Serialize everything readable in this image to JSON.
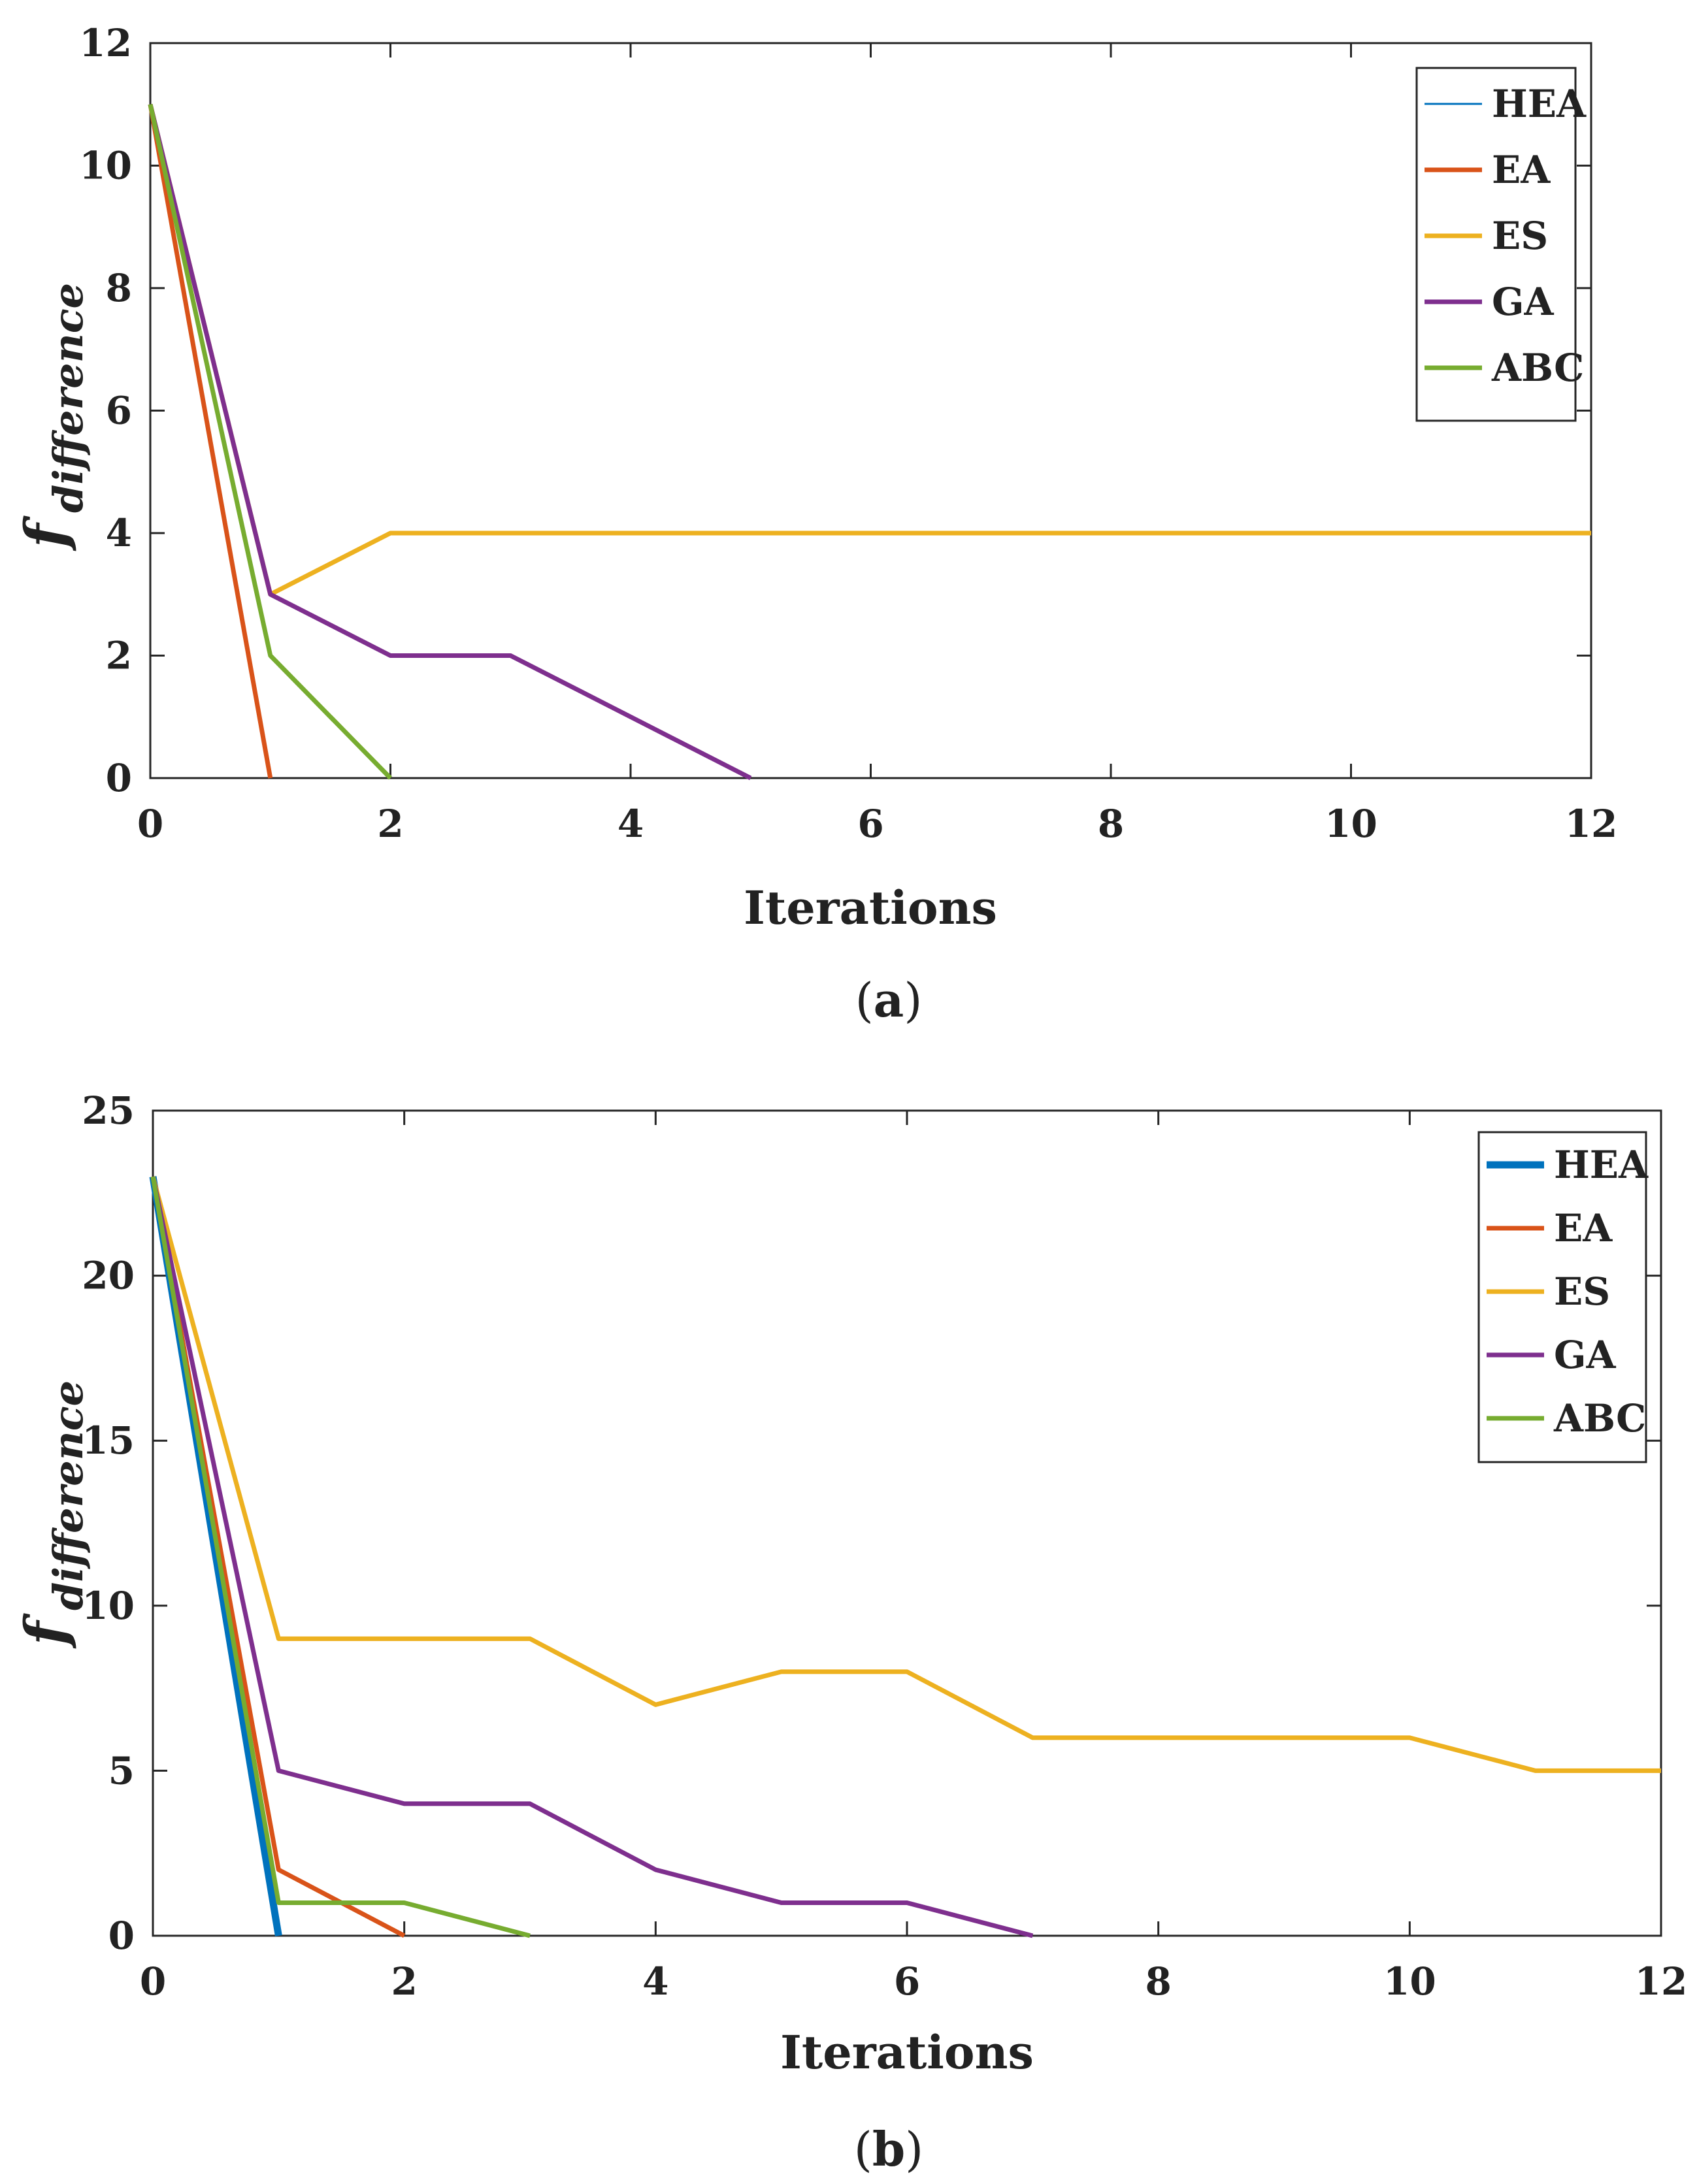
{
  "chart_data": [
    {
      "type": "line",
      "panel_label": "a",
      "xlabel": "Iterations",
      "ylabel_main": "f",
      "ylabel_sub": "difference",
      "xlim": [
        0,
        12
      ],
      "ylim": [
        0,
        12
      ],
      "xticks": [
        0,
        2,
        4,
        6,
        8,
        10,
        12
      ],
      "yticks": [
        0,
        2,
        4,
        6,
        8,
        10,
        12
      ],
      "grid": false,
      "legend_position": "top-right",
      "series": [
        {
          "name": "HEA",
          "color": "#0072BD",
          "thin": true,
          "x": [
            0,
            1
          ],
          "y": [
            11,
            0
          ]
        },
        {
          "name": "EA",
          "color": "#D95319",
          "x": [
            0,
            1
          ],
          "y": [
            11,
            0
          ]
        },
        {
          "name": "ES",
          "color": "#EDB120",
          "x": [
            0,
            1,
            2,
            3,
            4,
            5,
            6,
            7,
            8,
            9,
            10,
            11,
            12
          ],
          "y": [
            11,
            3,
            4,
            4,
            4,
            4,
            4,
            4,
            4,
            4,
            4,
            4,
            4
          ]
        },
        {
          "name": "GA",
          "color": "#7E2F8E",
          "x": [
            0,
            1,
            2,
            3,
            4,
            5
          ],
          "y": [
            11,
            3,
            2,
            2,
            1,
            0
          ]
        },
        {
          "name": "ABC",
          "color": "#77AC30",
          "x": [
            0,
            1,
            2
          ],
          "y": [
            11,
            2,
            0
          ]
        }
      ]
    },
    {
      "type": "line",
      "panel_label": "b",
      "xlabel": "Iterations",
      "ylabel_main": "f",
      "ylabel_sub": "difference",
      "xlim": [
        0,
        12
      ],
      "ylim": [
        0,
        25
      ],
      "xticks": [
        0,
        2,
        4,
        6,
        8,
        10,
        12
      ],
      "yticks": [
        0,
        5,
        10,
        15,
        20,
        25
      ],
      "grid": false,
      "legend_position": "top-right",
      "series": [
        {
          "name": "HEA",
          "color": "#0072BD",
          "thick": true,
          "x": [
            0,
            1
          ],
          "y": [
            23,
            0
          ]
        },
        {
          "name": "EA",
          "color": "#D95319",
          "x": [
            0,
            1,
            2
          ],
          "y": [
            23,
            2,
            0
          ]
        },
        {
          "name": "ES",
          "color": "#EDB120",
          "x": [
            0,
            1,
            2,
            3,
            4,
            5,
            6,
            7,
            8,
            9,
            10,
            11,
            12
          ],
          "y": [
            23,
            9,
            9,
            9,
            7,
            8,
            8,
            6,
            6,
            6,
            6,
            5,
            5
          ]
        },
        {
          "name": "GA",
          "color": "#7E2F8E",
          "x": [
            0,
            1,
            2,
            3,
            4,
            5,
            6,
            7
          ],
          "y": [
            23,
            5,
            4,
            4,
            2,
            1,
            1,
            0
          ]
        },
        {
          "name": "ABC",
          "color": "#77AC30",
          "x": [
            0,
            1,
            2,
            3
          ],
          "y": [
            23,
            1,
            1,
            0
          ]
        }
      ]
    }
  ]
}
